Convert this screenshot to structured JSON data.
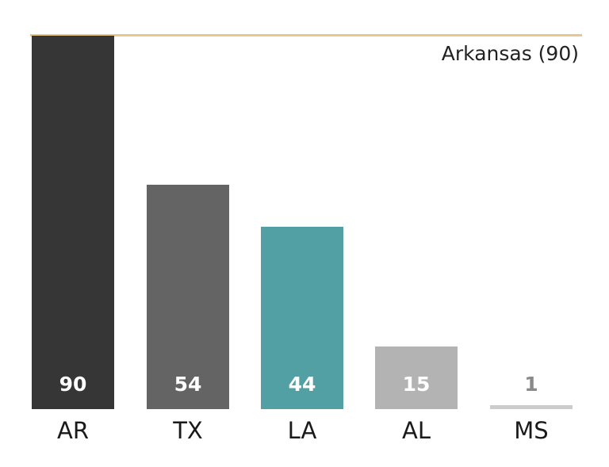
{
  "chart_data": {
    "type": "bar",
    "title": "",
    "xlabel": "",
    "ylabel": "",
    "categories": [
      "AR",
      "TX",
      "LA",
      "AL",
      "MS"
    ],
    "values": [
      90,
      54,
      44,
      15,
      1
    ],
    "colors": [
      "#363636",
      "#646464",
      "#52a0a3",
      "#b3b3b3",
      "#cccccc"
    ],
    "value_label_colors": [
      "#ffffff",
      "#ffffff",
      "#ffffff",
      "#ffffff",
      "#8a8a8a"
    ],
    "ylim": [
      0,
      90
    ],
    "grid": false,
    "reference_line": {
      "value": 90,
      "label": "Arkansas (90)",
      "color": "#e8c88a"
    }
  }
}
